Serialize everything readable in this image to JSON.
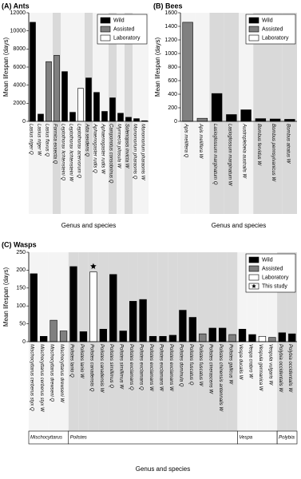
{
  "chart_data": [
    {
      "type": "bar",
      "title": "(A) Ants",
      "ylabel": "Mean lifespan (days)",
      "xlabel": "Genus and species",
      "categories": [
        "Lasius niger Q",
        "Lasius niger W",
        "Lasius flavus Q",
        "Formica exsecta Q",
        "Leptothorax lichtensteini Q",
        "Leptothorax lichtensteini W",
        "Leptothorax acervorum Q",
        "Atta sexdens Q",
        "Aphaenogaster rudis Q",
        "Aphaenogaster rudis W",
        "Camponotus consobrinus Q",
        "Myrmecia pilosula W",
        "Solenopsis invicta W",
        "Monomorium pharaonis Q",
        "Monomorium pharaonis W"
      ],
      "series": [
        {
          "name": "Wild",
          "color": "#000000",
          "values": [
            10950,
            800,
            null,
            null,
            5500,
            1000,
            null,
            4800,
            3200,
            1100,
            2600,
            900,
            450,
            300,
            70
          ]
        },
        {
          "name": "Assisted",
          "color": "#808080",
          "values": [
            null,
            null,
            6600,
            7300,
            null,
            null,
            null,
            null,
            null,
            null,
            null,
            null,
            null,
            null,
            null
          ]
        },
        {
          "name": "Laboratory",
          "color": "#ffffff",
          "values": [
            null,
            null,
            null,
            null,
            null,
            null,
            3650,
            null,
            null,
            null,
            null,
            null,
            null,
            null,
            null
          ]
        }
      ],
      "ylim": [
        0,
        12000
      ],
      "yticks": [
        0,
        2000,
        4000,
        6000,
        8000,
        10000,
        12000
      ],
      "legend": "upper right"
    },
    {
      "type": "bar",
      "title": "(B) Bees",
      "ylabel": "Mean lifespan (days)",
      "xlabel": "Genus and species",
      "categories": [
        "Apis mellifera Q",
        "Apis mellifera W",
        "Lasioglossum marginatum Q",
        "Lasioglossum marginatum W",
        "Austroplebeia australis W",
        "Bombus fervidus W",
        "Bombus pennsylvanicus W",
        "Bombus atratus W"
      ],
      "series": [
        {
          "name": "Wild",
          "color": "#000000",
          "values": [
            null,
            null,
            410,
            100,
            170,
            40,
            35,
            30
          ]
        },
        {
          "name": "Assisted",
          "color": "#808080",
          "values": [
            1460,
            45,
            null,
            null,
            null,
            null,
            null,
            null
          ]
        },
        {
          "name": "Laboratory",
          "color": "#ffffff",
          "values": [
            null,
            null,
            null,
            null,
            null,
            null,
            null,
            null
          ]
        }
      ],
      "ylim": [
        0,
        1600
      ],
      "yticks": [
        0,
        200,
        400,
        600,
        800,
        1000,
        1200,
        1400,
        1600
      ],
      "legend": "upper right"
    },
    {
      "type": "bar",
      "title": "(C) Wasps",
      "ylabel": "Mean lifespan (days)",
      "xlabel": "Genus and species",
      "categories": [
        "Mischocyttarus cerberus styx Q",
        "Mischocyttarus cerberus styx W",
        "Mischocyttarus drewseni Q",
        "Mischocyttarus drewseni W",
        "Polistes lanio Q",
        "Polistes lanio W",
        "Polistes canadensis Q",
        "Polistes canadensis W",
        "Polistes simillimus Q",
        "Polistes simillimus W",
        "Polistes exclamans Q",
        "Polistes exclamans Q",
        "Polistes exclamans W",
        "Polistes exclamans W",
        "Polistes exclamans W",
        "Polistes dominula Q",
        "Polistes fuscatus Q",
        "Polistes fuscatus W",
        "Polistes cinerascens W",
        "Polistes chinensis antennalis W",
        "Polistes gallicus W",
        "Vespa ducalis W",
        "Vespa crabro W",
        "Vespula germanica W",
        "Vespula vulgaris W",
        "Polybia occidentalis W",
        "Polybia occidentalis W"
      ],
      "category_groups": [
        "Mischocyttarus",
        "Mischocyttarus",
        "Mischocyttarus",
        "Mischocyttarus",
        "Polistes",
        "Polistes",
        "Polistes",
        "Polistes",
        "Polistes",
        "Polistes",
        "Polistes",
        "Polistes",
        "Polistes",
        "Polistes",
        "Polistes",
        "Polistes",
        "Polistes",
        "Polistes",
        "Polistes",
        "Polistes",
        "Polistes",
        "Vespa",
        "Vespa",
        "Vespa",
        "Vespa",
        "Polybia",
        "Polybia"
      ],
      "series": [
        {
          "name": "Wild",
          "color": "#000000",
          "values": [
            190,
            15,
            null,
            null,
            210,
            28,
            null,
            35,
            188,
            30,
            113,
            118,
            15,
            15,
            18,
            88,
            68,
            null,
            38,
            38,
            null,
            35,
            20,
            null,
            null,
            25,
            22
          ]
        },
        {
          "name": "Assisted",
          "color": "#808080",
          "values": [
            null,
            null,
            60,
            30,
            null,
            null,
            null,
            null,
            null,
            null,
            null,
            null,
            null,
            null,
            null,
            null,
            null,
            22,
            null,
            null,
            20,
            null,
            null,
            null,
            12,
            null,
            null
          ]
        },
        {
          "name": "Laboratory",
          "color": "#ffffff",
          "values": [
            null,
            null,
            null,
            null,
            null,
            null,
            195,
            null,
            null,
            null,
            null,
            null,
            null,
            null,
            null,
            null,
            null,
            null,
            null,
            null,
            null,
            null,
            null,
            15,
            null,
            null,
            null
          ]
        }
      ],
      "marker_label": "This study",
      "marked": [
        6
      ],
      "ylim": [
        0,
        250
      ],
      "yticks": [
        0,
        50,
        100,
        150,
        200,
        250
      ],
      "legend": "upper right"
    }
  ]
}
